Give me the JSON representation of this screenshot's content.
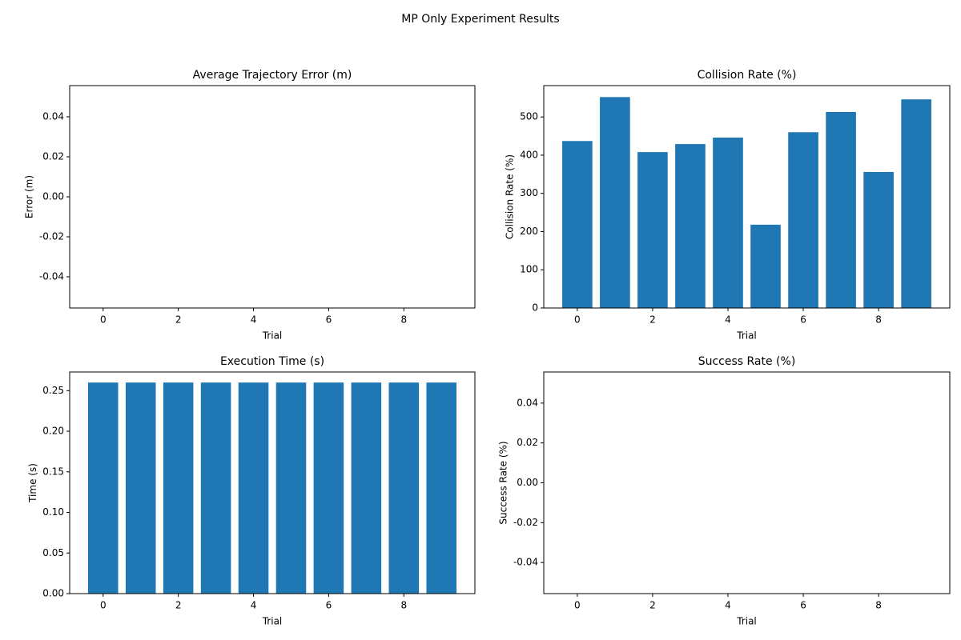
{
  "title": "MP Only Experiment Results",
  "chart_data": [
    {
      "type": "bar",
      "title": "Average Trajectory Error (m)",
      "xlabel": "Trial",
      "ylabel": "Error (m)",
      "color": "#1f77b4",
      "x": [
        0,
        1,
        2,
        3,
        4,
        5,
        6,
        7,
        8,
        9
      ],
      "values": [
        0,
        0,
        0,
        0,
        0,
        0,
        0,
        0,
        0,
        0
      ],
      "xlim": [
        -0.89,
        9.89
      ],
      "xticks": [
        0,
        2,
        4,
        6,
        8
      ],
      "ylim": [
        -0.0556,
        0.0556
      ],
      "yticks": [
        -0.04,
        -0.02,
        {
          "value": 0,
          "label": "0.00"
        },
        0.02,
        0.04
      ]
    },
    {
      "type": "bar",
      "title": "Collision Rate (%)",
      "xlabel": "Trial",
      "ylabel": "Collision Rate (%)",
      "color": "#1f77b4",
      "x": [
        0,
        1,
        2,
        3,
        4,
        5,
        6,
        7,
        8,
        9
      ],
      "values": [
        437,
        552,
        408,
        429,
        446,
        218,
        460,
        513,
        356,
        546
      ],
      "xlim": [
        -0.89,
        9.89
      ],
      "xticks": [
        0,
        2,
        4,
        6,
        8
      ],
      "ylim": [
        0,
        582
      ],
      "yticks": [
        0,
        100,
        200,
        300,
        400,
        500
      ]
    },
    {
      "type": "bar",
      "title": "Execution Time (s)",
      "xlabel": "Trial",
      "ylabel": "Time (s)",
      "color": "#1f77b4",
      "x": [
        0,
        1,
        2,
        3,
        4,
        5,
        6,
        7,
        8,
        9
      ],
      "values": [
        0.26,
        0.26,
        0.26,
        0.26,
        0.26,
        0.26,
        0.26,
        0.26,
        0.26,
        0.26
      ],
      "xlim": [
        -0.89,
        9.89
      ],
      "xticks": [
        0,
        2,
        4,
        6,
        8
      ],
      "ylim": [
        0,
        0.273
      ],
      "yticks": [
        {
          "value": 0,
          "label": "0.00"
        },
        0.05,
        {
          "value": 0.1,
          "label": "0.10"
        },
        0.15,
        {
          "value": 0.2,
          "label": "0.20"
        },
        0.25
      ]
    },
    {
      "type": "bar",
      "title": "Success Rate (%)",
      "xlabel": "Trial",
      "ylabel": "Success Rate (%)",
      "color": "#1f77b4",
      "x": [
        0,
        1,
        2,
        3,
        4,
        5,
        6,
        7,
        8,
        9
      ],
      "values": [
        0,
        0,
        0,
        0,
        0,
        0,
        0,
        0,
        0,
        0
      ],
      "xlim": [
        -0.89,
        9.89
      ],
      "xticks": [
        0,
        2,
        4,
        6,
        8
      ],
      "ylim": [
        -0.0556,
        0.0556
      ],
      "yticks": [
        -0.04,
        -0.02,
        {
          "value": 0,
          "label": "0.00"
        },
        0.02,
        0.04
      ]
    }
  ]
}
